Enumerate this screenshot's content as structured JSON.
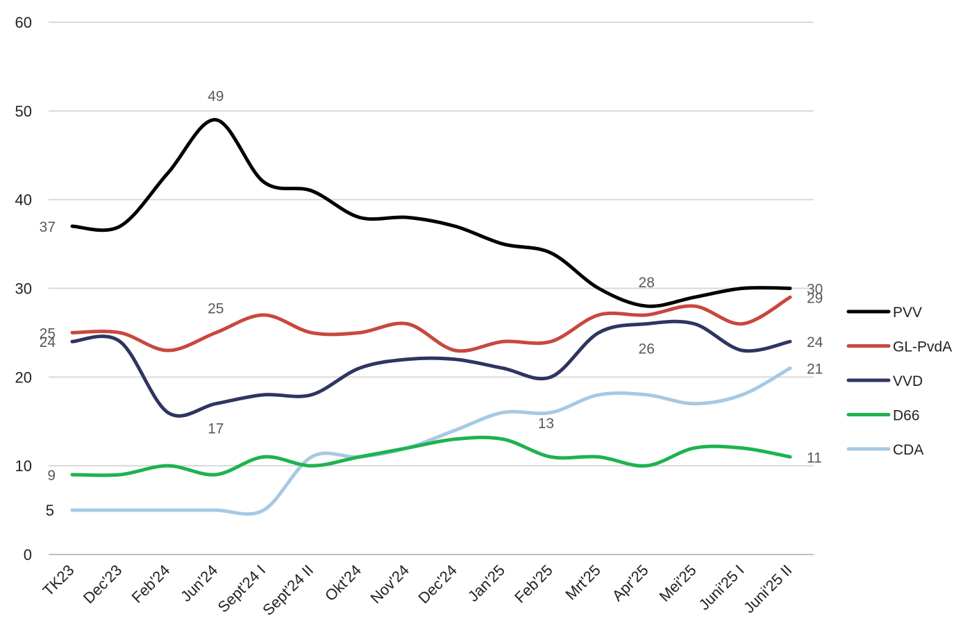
{
  "chart_data": {
    "type": "line",
    "categories": [
      "TK23",
      "Dec'23",
      "Feb'24",
      "Jun'24",
      "Sept'24 I",
      "Sept'24 II",
      "Okt'24",
      "Nov'24",
      "Dec'24",
      "Jan'25",
      "Feb'25",
      "Mrt'25",
      "Apr'25",
      "Mei'25",
      "Juni'25 I",
      "Juni'25 II"
    ],
    "ylim": [
      0,
      60
    ],
    "yticks": [
      0,
      10,
      20,
      30,
      40,
      50,
      60
    ],
    "y_tick_labels": [
      "0",
      "10",
      "20",
      "30",
      "40",
      "50",
      "60"
    ],
    "extra_y_ticks": [
      5
    ],
    "extra_y_tick_labels": [
      "5"
    ],
    "grid": true,
    "legend": "right",
    "series": [
      {
        "name": "PVV",
        "color": "#000000",
        "values": [
          37,
          37,
          43,
          49,
          42,
          41,
          38,
          38,
          37,
          35,
          34,
          30,
          28,
          29,
          30,
          30
        ]
      },
      {
        "name": "GL-PvdA",
        "color": "#c9473d",
        "values": [
          25,
          25,
          23,
          25,
          27,
          25,
          25,
          26,
          23,
          24,
          24,
          27,
          27,
          28,
          26,
          29
        ]
      },
      {
        "name": "VVD",
        "color": "#2f3560",
        "values": [
          24,
          24,
          16,
          17,
          18,
          18,
          21,
          22,
          22,
          21,
          20,
          25,
          26,
          26,
          23,
          24
        ]
      },
      {
        "name": "D66",
        "color": "#1db34f",
        "values": [
          9,
          9,
          10,
          9,
          11,
          10,
          11,
          12,
          13,
          13,
          11,
          11,
          10,
          12,
          12,
          11
        ]
      },
      {
        "name": "CDA",
        "color": "#a6c9e4",
        "values": [
          5,
          5,
          5,
          5,
          5,
          11,
          11,
          12,
          14,
          16,
          16,
          18,
          18,
          17,
          18,
          21
        ]
      }
    ],
    "data_labels": [
      {
        "series": "PVV",
        "index": 0,
        "text": "37"
      },
      {
        "series": "PVV",
        "index": 3,
        "text": "49"
      },
      {
        "series": "PVV",
        "index": 12,
        "text": "28"
      },
      {
        "series": "PVV",
        "index": 15,
        "text": "30"
      },
      {
        "series": "GL-PvdA",
        "index": 0,
        "text": "25"
      },
      {
        "series": "GL-PvdA",
        "index": 3,
        "text": "25"
      },
      {
        "series": "GL-PvdA",
        "index": 15,
        "text": "29"
      },
      {
        "series": "VVD",
        "index": 0,
        "text": "24"
      },
      {
        "series": "VVD",
        "index": 3,
        "text": "17"
      },
      {
        "series": "VVD",
        "index": 12,
        "text": "26"
      },
      {
        "series": "VVD",
        "index": 15,
        "text": "24"
      },
      {
        "series": "D66",
        "index": 0,
        "text": "9"
      },
      {
        "series": "D66",
        "index": 9,
        "text": "13"
      },
      {
        "series": "D66",
        "index": 15,
        "text": "11"
      },
      {
        "series": "CDA",
        "index": 15,
        "text": "21"
      }
    ]
  }
}
